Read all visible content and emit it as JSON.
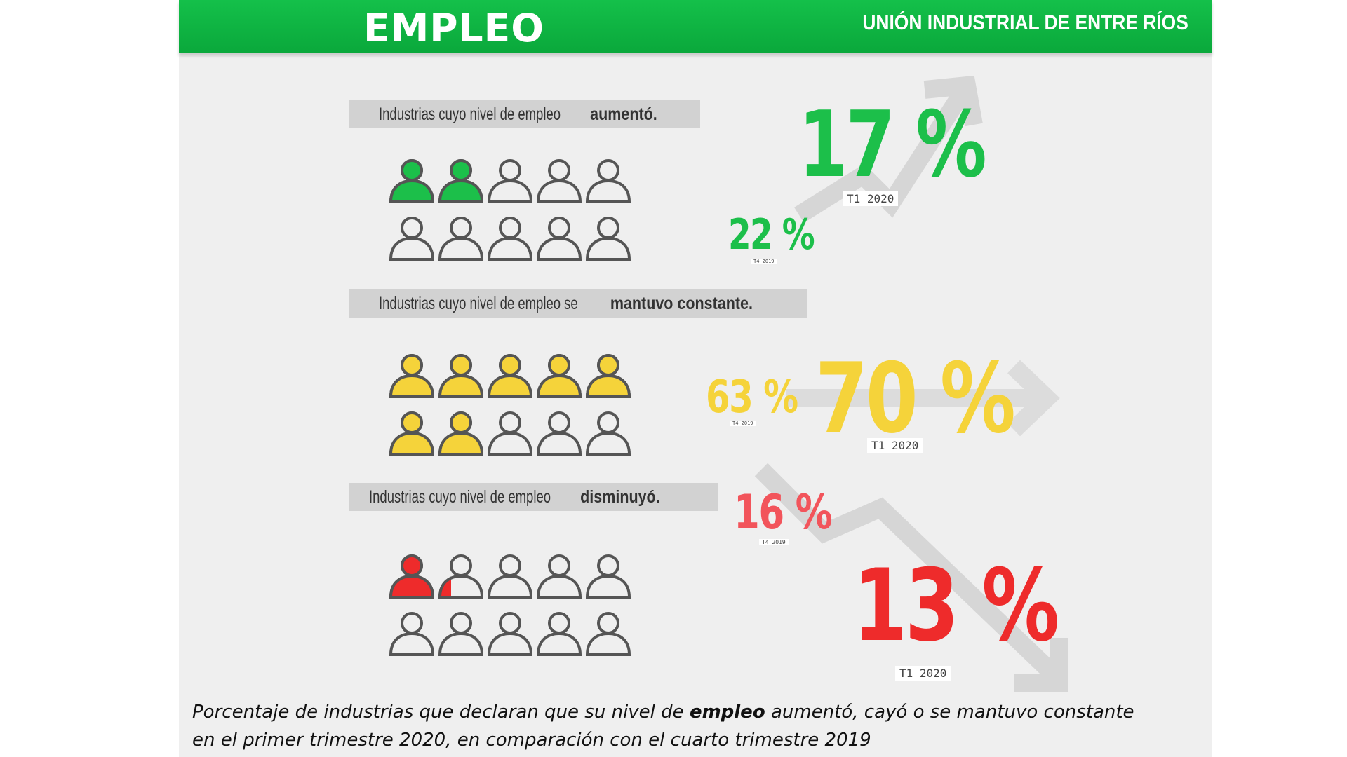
{
  "header": {
    "title": "EMPLEO",
    "organization": "UNIÓN INDUSTRIAL DE ENTRE RÍOS"
  },
  "colors": {
    "header_green": "#10b744",
    "increase": "#1cbf4a",
    "constant": "#f5d33a",
    "decrease": "#ee2b2b",
    "outline": "#555555",
    "arrow": "#d6d6d6"
  },
  "sections": [
    {
      "id": "aumento",
      "label_prefix": "Industrias cuyo nivel de empleo ",
      "label_bold": "aumentó.",
      "label_suffix": "",
      "icon_color": "#1cbf4a",
      "filled_icons": 2,
      "total_icons": 10,
      "current_value": "17 %",
      "current_period": "T1 2020",
      "previous_value": "22 %",
      "previous_period": "T4 2019",
      "trend_icon": "up-arrow-icon"
    },
    {
      "id": "constante",
      "label_prefix": "Industrias cuyo nivel de empleo se ",
      "label_bold": "mantuvo constante.",
      "label_suffix": "",
      "icon_color": "#f5d33a",
      "filled_icons": 7,
      "total_icons": 10,
      "current_value": "70 %",
      "current_period": "T1 2020",
      "previous_value": "63 %",
      "previous_period": "T4 2019",
      "trend_icon": "right-arrow-icon"
    },
    {
      "id": "disminucion",
      "label_prefix": "Industrias cuyo nivel de empleo ",
      "label_bold": "disminuyó.",
      "label_suffix": "",
      "icon_color": "#ee2b2b",
      "filled_icons": 1.3,
      "total_icons": 10,
      "current_value": "13 %",
      "current_period": "T1 2020",
      "previous_value": "16 %",
      "previous_period": "T4 2019",
      "trend_icon": "down-arrow-icon"
    }
  ],
  "caption": {
    "part1": "Porcentaje de industrias que declaran que su nivel de ",
    "bold": "empleo",
    "part2": " aumentó, cayó o se mantuvo constante",
    "line2": "en el primer trimestre 2020, en comparación con el cuarto trimestre 2019"
  }
}
